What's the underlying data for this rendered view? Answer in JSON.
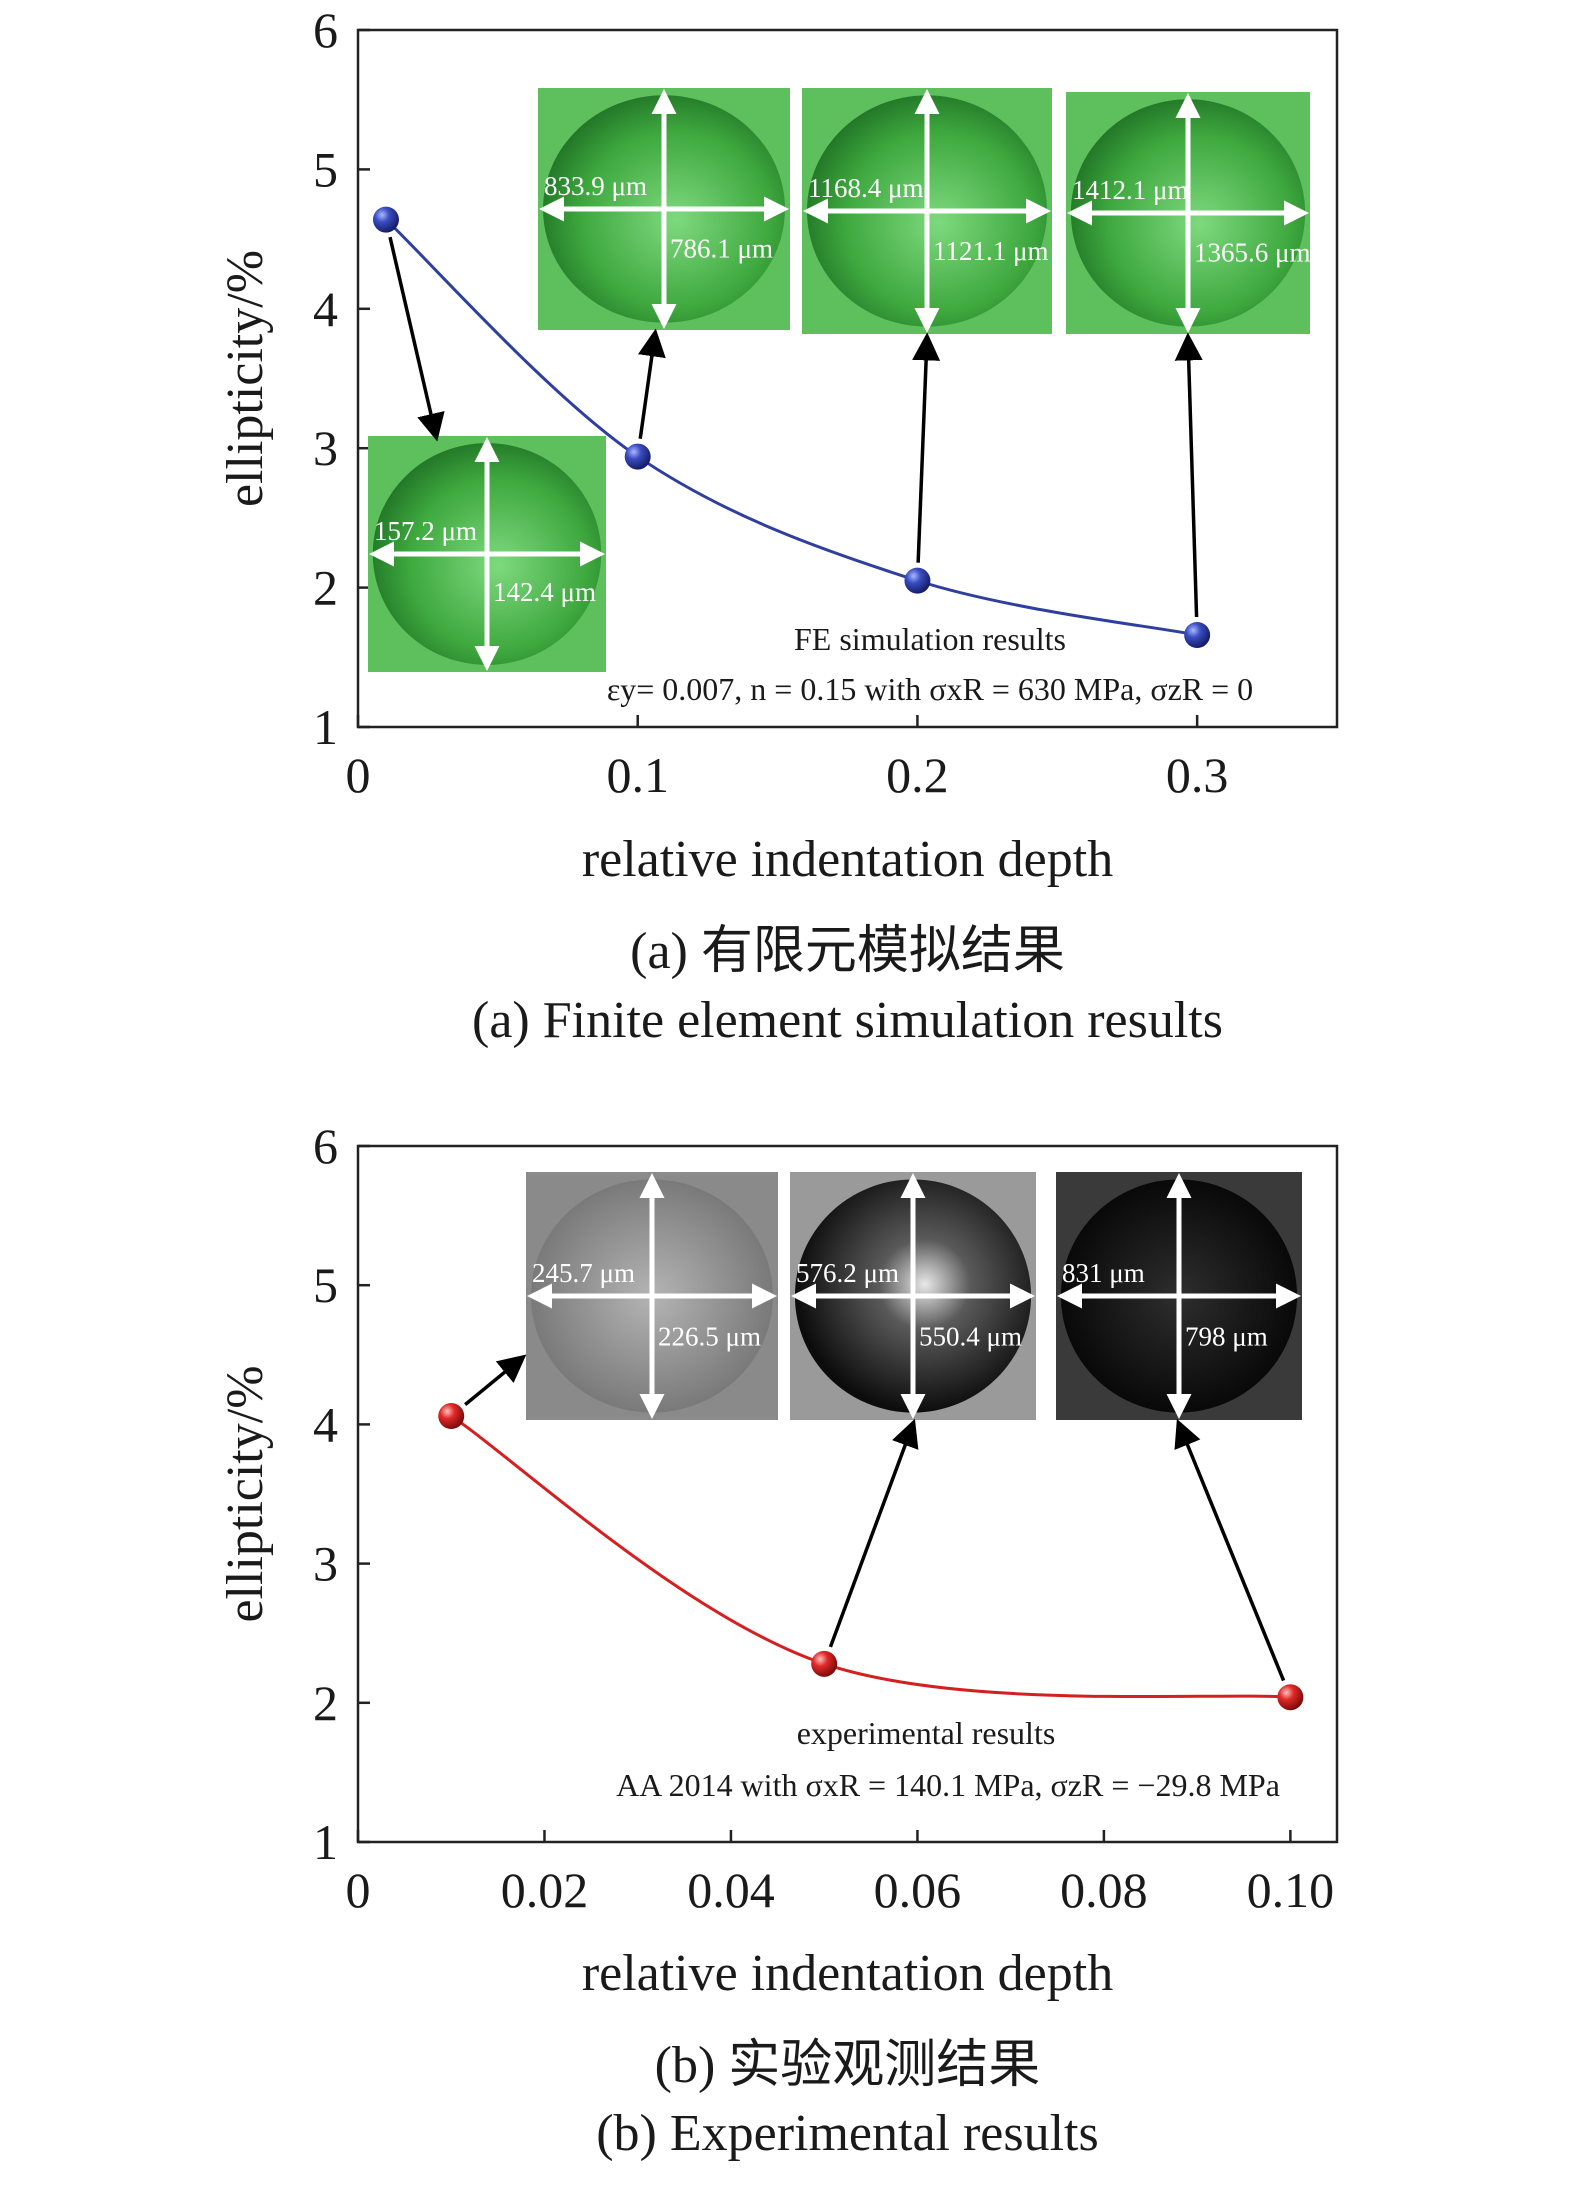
{
  "chart_data": [
    {
      "id": "a",
      "type": "line",
      "xlabel": "relative indentation depth",
      "ylabel": "ellipticity/%",
      "xlim": [
        0,
        0.35
      ],
      "ylim": [
        1,
        6
      ],
      "xticks": [
        0,
        0.1,
        0.2,
        0.3
      ],
      "xtick_labels": [
        "0",
        "0.1",
        "0.2",
        "0.3"
      ],
      "yticks": [
        1,
        2,
        3,
        4,
        5,
        6
      ],
      "ytick_labels": [
        "1",
        "2",
        "3",
        "4",
        "5",
        "6"
      ],
      "grid": false,
      "series": [
        {
          "color": "#2f3f9e",
          "marker": "sphere",
          "x": [
            0.01,
            0.1,
            0.2,
            0.3
          ],
          "y": [
            4.64,
            2.94,
            2.05,
            1.66
          ]
        }
      ],
      "annotations": [
        "FE simulation results",
        "εy= 0.007, n = 0.15 with σxR = 630 MPa, σzR = 0"
      ],
      "insets": [
        {
          "style": "green",
          "horizontal": "157.2 μm",
          "vertical": "142.4 μm",
          "point_index": 0
        },
        {
          "style": "green",
          "horizontal": "833.9 μm",
          "vertical": "786.1 μm",
          "point_index": 1
        },
        {
          "style": "green",
          "horizontal": "1168.4 μm",
          "vertical": "1121.1 μm",
          "point_index": 2
        },
        {
          "style": "green",
          "horizontal": "1412.1 μm",
          "vertical": "1365.6 μm",
          "point_index": 3
        }
      ],
      "caption_cn": "(a) 有限元模拟结果",
      "caption_en": "(a) Finite element simulation results"
    },
    {
      "id": "b",
      "type": "line",
      "xlabel": "relative indentation depth",
      "ylabel": "ellipticity/%",
      "xlim": [
        0,
        0.105
      ],
      "ylim": [
        1,
        6
      ],
      "xticks": [
        0,
        0.02,
        0.04,
        0.06,
        0.08,
        0.1
      ],
      "xtick_labels": [
        "0",
        "0.02",
        "0.04",
        "0.06",
        "0.08",
        "0.10"
      ],
      "yticks": [
        1,
        2,
        3,
        4,
        5,
        6
      ],
      "ytick_labels": [
        "1",
        "2",
        "3",
        "4",
        "5",
        "6"
      ],
      "grid": false,
      "series": [
        {
          "color": "#d42020",
          "marker": "sphere",
          "x": [
            0.01,
            0.05,
            0.1
          ],
          "y": [
            4.06,
            2.28,
            2.04
          ]
        }
      ],
      "annotations": [
        "experimental results",
        "AA 2014 with σxR = 140.1 MPa, σzR = −29.8 MPa"
      ],
      "insets": [
        {
          "style": "gray",
          "horizontal": "245.7 μm",
          "vertical": "226.5 μm",
          "point_index": 0
        },
        {
          "style": "dark",
          "horizontal": "576.2 μm",
          "vertical": "550.4 μm",
          "point_index": 1
        },
        {
          "style": "darker",
          "horizontal": "831 μm",
          "vertical": "798 μm",
          "point_index": 2
        }
      ],
      "caption_cn": "(b) 实验观测结果",
      "caption_en": "(b) Experimental results"
    }
  ]
}
